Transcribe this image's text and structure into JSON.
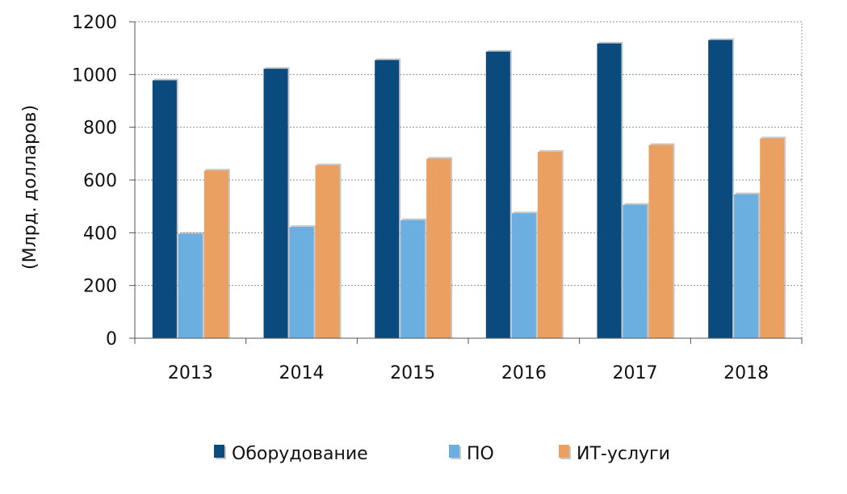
{
  "chart_data": {
    "type": "bar",
    "ylabel": "(Млрд. долларов)",
    "xlabel": "",
    "ylim": [
      0,
      1200
    ],
    "yticks": [
      0,
      200,
      400,
      600,
      800,
      1000,
      1200
    ],
    "grid": true,
    "legend_position": "bottom",
    "categories": [
      "2013",
      "2014",
      "2015",
      "2016",
      "2017",
      "2018"
    ],
    "series": [
      {
        "name": "Оборудование",
        "color": "#0b4a7c",
        "values": [
          978,
          1022,
          1055,
          1087,
          1118,
          1131
        ]
      },
      {
        "name": "ПО",
        "color": "#6aafe0",
        "values": [
          396,
          422,
          448,
          474,
          506,
          546
        ]
      },
      {
        "name": "ИТ-услуги",
        "color": "#e9a060",
        "values": [
          636,
          656,
          681,
          707,
          733,
          758
        ]
      }
    ]
  }
}
